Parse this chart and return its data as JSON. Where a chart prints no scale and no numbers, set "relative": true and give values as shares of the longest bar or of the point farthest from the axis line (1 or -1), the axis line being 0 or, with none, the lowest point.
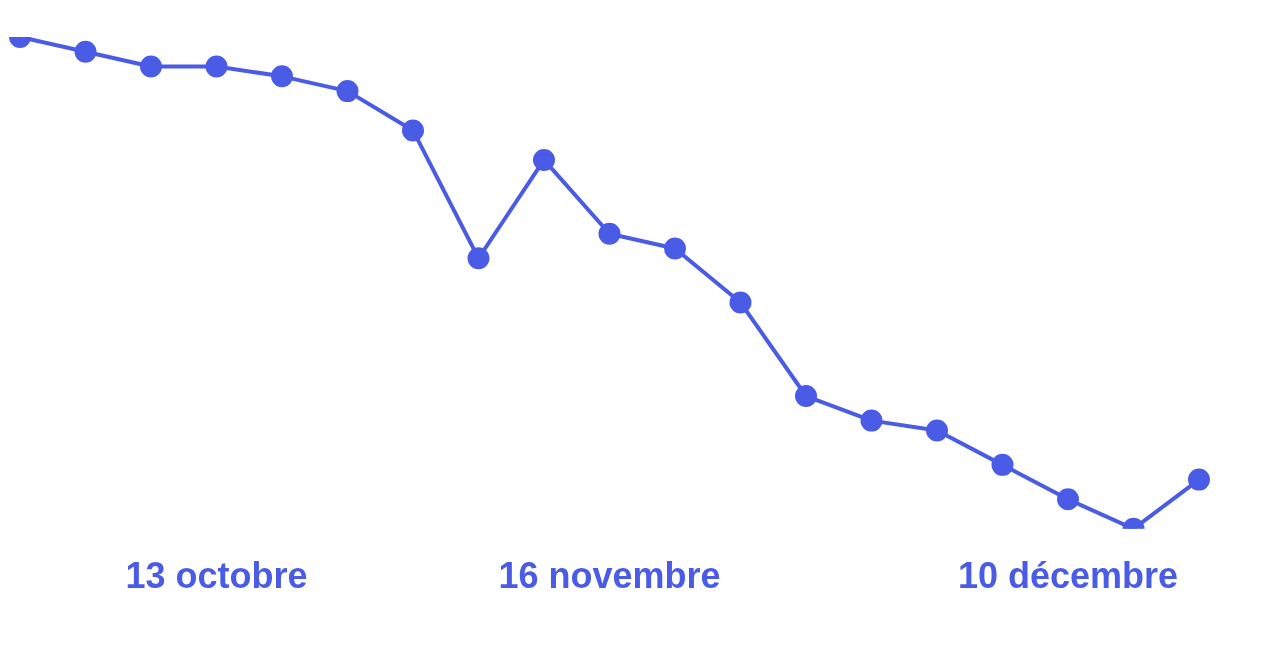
{
  "chart_data": {
    "type": "line",
    "relative": true,
    "marker": "circle",
    "line_style": "solid",
    "categories": [
      null,
      null,
      null,
      "13 octobre",
      null,
      null,
      null,
      null,
      null,
      "16 novembre",
      null,
      null,
      null,
      null,
      null,
      null,
      "10 décembre",
      null,
      null
    ],
    "series": [
      {
        "color": "#4a5be6",
        "values": [
          1.0,
          0.97,
          0.94,
          0.94,
          0.92,
          0.89,
          0.81,
          0.55,
          0.75,
          0.6,
          0.57,
          0.46,
          0.27,
          0.22,
          0.2,
          0.13,
          0.06,
          0,
          0.1
        ]
      }
    ]
  }
}
